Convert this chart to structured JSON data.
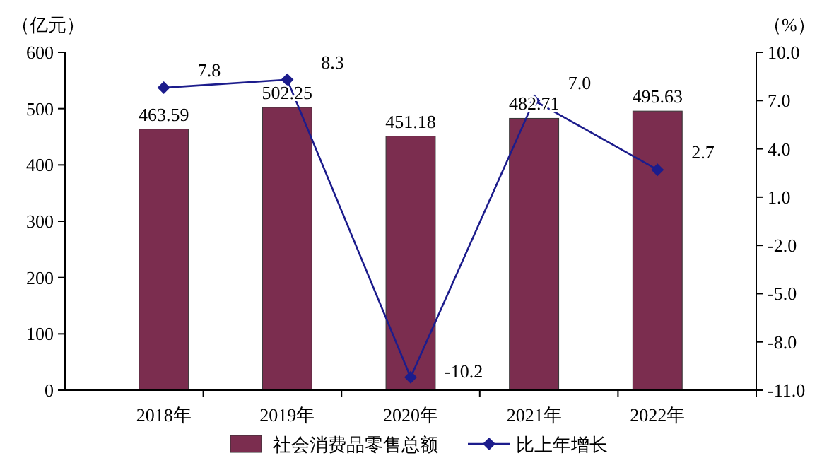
{
  "chart_data": {
    "type": "bar",
    "categories": [
      "2018年",
      "2019年",
      "2020年",
      "2021年",
      "2022年"
    ],
    "ylabel": "（亿元）",
    "y2label": "（%）",
    "series": [
      {
        "name": "社会消费品零售总额",
        "color": "#7b2d4f",
        "values": [
          463.59,
          502.25,
          451.18,
          482.71,
          495.63
        ]
      },
      {
        "name": "比上年增长",
        "type": "line",
        "axis": "y2",
        "color": "#1c1c8c",
        "marker": "diamond",
        "values": [
          7.8,
          8.3,
          -10.2,
          7.0,
          2.7
        ],
        "value_labels": [
          "7.8",
          "8.3",
          "-10.2",
          "7.0",
          "2.7"
        ]
      }
    ],
    "ylim": [
      0,
      600
    ],
    "yticks": [
      0,
      100,
      200,
      300,
      400,
      500,
      600
    ],
    "y2lim": [
      -11,
      10
    ],
    "y2ticks": [
      {
        "value": -11,
        "label": "-11.0"
      },
      {
        "value": -8,
        "label": "-8.0"
      },
      {
        "value": -5,
        "label": "-5.0"
      },
      {
        "value": -2,
        "label": "-2.0"
      },
      {
        "value": 1,
        "label": "1.0"
      },
      {
        "value": 4,
        "label": "4.0"
      },
      {
        "value": 7,
        "label": "7.0"
      },
      {
        "value": 10,
        "label": "10.0"
      }
    ],
    "data_labels": true,
    "legend": "bottom"
  }
}
